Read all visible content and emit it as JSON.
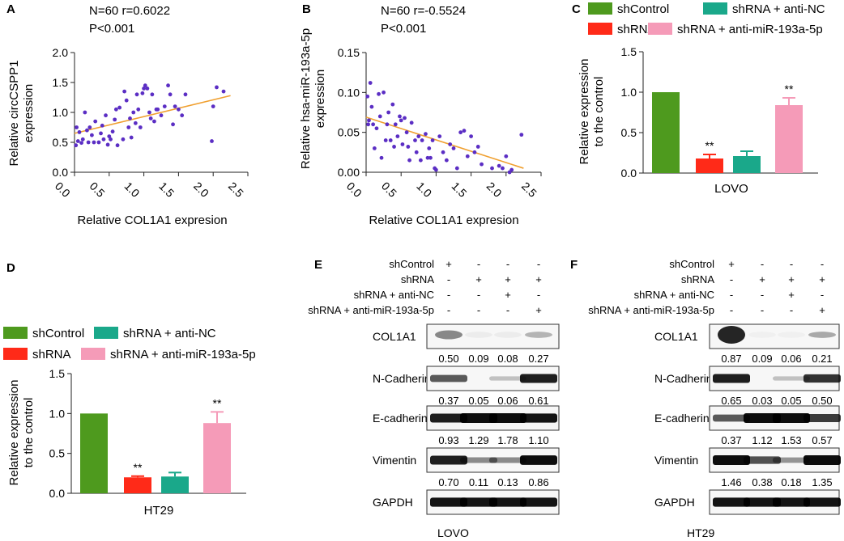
{
  "colors": {
    "shControl": "#4e9a1e",
    "shRNA": "#ff2a18",
    "antiNC": "#1aa88a",
    "antiMiR": "#f59bb8",
    "scatter_point": "#5b2ec4",
    "fit_line": "#f0a030"
  },
  "legend": {
    "shControl": "shControl",
    "antiNC": "shRNA + anti-NC",
    "shRNA": "shRNA",
    "antiMiR": "shRNA + anti-miR-193a-5p"
  },
  "chart_data": [
    {
      "id": "A",
      "type": "scatter",
      "letter": "A",
      "annotation_line1": "N=60   r=0.6022",
      "annotation_line2": "P<0.001",
      "xlabel": "Relative COL1A1 expresion",
      "ylabel_line1": "Relative circCSPP1",
      "ylabel_line2": "expression",
      "xlim": [
        0.0,
        2.5
      ],
      "ylim": [
        0.0,
        2.0
      ],
      "xticks": [
        "0.0",
        "0.5",
        "1.0",
        "1.5",
        "2.0",
        "2.5"
      ],
      "yticks": [
        "0.0",
        "0.5",
        "1.0",
        "1.5",
        "2.0"
      ],
      "fit": [
        [
          0.0,
          0.65
        ],
        [
          2.25,
          1.28
        ]
      ],
      "points": [
        [
          0.02,
          0.45
        ],
        [
          0.03,
          0.75
        ],
        [
          0.05,
          0.52
        ],
        [
          0.07,
          0.67
        ],
        [
          0.1,
          0.49
        ],
        [
          0.12,
          0.55
        ],
        [
          0.15,
          1.0
        ],
        [
          0.18,
          0.7
        ],
        [
          0.2,
          0.5
        ],
        [
          0.22,
          0.75
        ],
        [
          0.25,
          0.62
        ],
        [
          0.28,
          0.5
        ],
        [
          0.3,
          0.85
        ],
        [
          0.35,
          0.5
        ],
        [
          0.38,
          0.65
        ],
        [
          0.4,
          0.78
        ],
        [
          0.42,
          0.55
        ],
        [
          0.45,
          0.95
        ],
        [
          0.48,
          0.46
        ],
        [
          0.5,
          0.6
        ],
        [
          0.52,
          0.55
        ],
        [
          0.55,
          0.68
        ],
        [
          0.58,
          0.88
        ],
        [
          0.6,
          1.05
        ],
        [
          0.62,
          0.45
        ],
        [
          0.65,
          1.08
        ],
        [
          0.7,
          0.55
        ],
        [
          0.72,
          1.35
        ],
        [
          0.75,
          1.2
        ],
        [
          0.78,
          0.75
        ],
        [
          0.8,
          0.9
        ],
        [
          0.82,
          0.58
        ],
        [
          0.85,
          1.0
        ],
        [
          0.88,
          0.82
        ],
        [
          0.9,
          1.3
        ],
        [
          0.92,
          1.05
        ],
        [
          0.95,
          0.75
        ],
        [
          0.98,
          1.32
        ],
        [
          1.0,
          1.4
        ],
        [
          1.02,
          1.45
        ],
        [
          1.05,
          1.4
        ],
        [
          1.08,
          1.0
        ],
        [
          1.1,
          0.9
        ],
        [
          1.12,
          1.3
        ],
        [
          1.15,
          0.85
        ],
        [
          1.18,
          1.05
        ],
        [
          1.2,
          1.05
        ],
        [
          1.25,
          0.95
        ],
        [
          1.3,
          1.1
        ],
        [
          1.35,
          1.45
        ],
        [
          1.38,
          1.3
        ],
        [
          1.42,
          0.8
        ],
        [
          1.45,
          1.1
        ],
        [
          1.5,
          1.05
        ],
        [
          1.55,
          0.95
        ],
        [
          1.6,
          1.3
        ],
        [
          1.98,
          0.52
        ],
        [
          2.0,
          1.1
        ],
        [
          2.05,
          1.42
        ],
        [
          2.15,
          1.35
        ]
      ]
    },
    {
      "id": "B",
      "type": "scatter",
      "letter": "B",
      "annotation_line1": "N=60   r=-0.5524",
      "annotation_line2": "P<0.001",
      "xlabel": "Relative COL1A1 expresion",
      "ylabel_line1": "Relative hsa-miR-193a-5p",
      "ylabel_line2": "expression",
      "xlim": [
        0.0,
        2.5
      ],
      "ylim": [
        0.0,
        0.15
      ],
      "xticks": [
        "0.0",
        "0.5",
        "1.0",
        "1.5",
        "2.0",
        "2.5"
      ],
      "yticks": [
        "0.00",
        "0.05",
        "0.10",
        "0.15"
      ],
      "fit": [
        [
          0.0,
          0.069
        ],
        [
          2.25,
          0.005
        ]
      ],
      "points": [
        [
          0.02,
          0.095
        ],
        [
          0.03,
          0.06
        ],
        [
          0.04,
          0.065
        ],
        [
          0.06,
          0.112
        ],
        [
          0.08,
          0.082
        ],
        [
          0.1,
          0.06
        ],
        [
          0.12,
          0.03
        ],
        [
          0.15,
          0.055
        ],
        [
          0.18,
          0.098
        ],
        [
          0.2,
          0.07
        ],
        [
          0.22,
          0.018
        ],
        [
          0.25,
          0.1
        ],
        [
          0.28,
          0.04
        ],
        [
          0.3,
          0.06
        ],
        [
          0.32,
          0.075
        ],
        [
          0.35,
          0.04
        ],
        [
          0.38,
          0.085
        ],
        [
          0.4,
          0.032
        ],
        [
          0.42,
          0.06
        ],
        [
          0.45,
          0.045
        ],
        [
          0.48,
          0.07
        ],
        [
          0.5,
          0.065
        ],
        [
          0.52,
          0.035
        ],
        [
          0.55,
          0.068
        ],
        [
          0.58,
          0.05
        ],
        [
          0.6,
          0.032
        ],
        [
          0.62,
          0.015
        ],
        [
          0.65,
          0.062
        ],
        [
          0.7,
          0.04
        ],
        [
          0.72,
          0.025
        ],
        [
          0.75,
          0.045
        ],
        [
          0.78,
          0.015
        ],
        [
          0.8,
          0.04
        ],
        [
          0.85,
          0.048
        ],
        [
          0.88,
          0.018
        ],
        [
          0.9,
          0.03
        ],
        [
          0.92,
          0.018
        ],
        [
          0.95,
          0.04
        ],
        [
          0.98,
          0.005
        ],
        [
          1.0,
          0.003
        ],
        [
          1.05,
          0.045
        ],
        [
          1.1,
          0.025
        ],
        [
          1.15,
          0.015
        ],
        [
          1.2,
          0.035
        ],
        [
          1.25,
          0.03
        ],
        [
          1.3,
          0.005
        ],
        [
          1.35,
          0.05
        ],
        [
          1.4,
          0.052
        ],
        [
          1.45,
          0.02
        ],
        [
          1.5,
          0.045
        ],
        [
          1.55,
          0.025
        ],
        [
          1.6,
          0.032
        ],
        [
          1.65,
          0.01
        ],
        [
          1.8,
          0.005
        ],
        [
          1.9,
          0.008
        ],
        [
          1.95,
          0.005
        ],
        [
          2.0,
          0.02
        ],
        [
          2.05,
          0.0
        ],
        [
          2.08,
          0.003
        ],
        [
          2.22,
          0.047
        ]
      ]
    },
    {
      "id": "C",
      "type": "bar",
      "letter": "C",
      "ylabel_line1": "Relative expression",
      "ylabel_line2": "to the control",
      "xlabel": "LOVO",
      "ylim": [
        0.0,
        1.5
      ],
      "yticks": [
        "0.0",
        "0.5",
        "1.0",
        "1.5"
      ],
      "values": [
        1.0,
        0.18,
        0.21,
        0.84
      ],
      "errors": [
        0.0,
        0.05,
        0.06,
        0.09
      ],
      "significance": [
        "",
        "**",
        "",
        "**"
      ]
    },
    {
      "id": "D",
      "type": "bar",
      "letter": "D",
      "ylabel_line1": "Relative expression",
      "ylabel_line2": "to the control",
      "xlabel": "HT29",
      "ylim": [
        0.0,
        1.5
      ],
      "yticks": [
        "0.0",
        "0.5",
        "1.0",
        "1.5"
      ],
      "values": [
        1.0,
        0.2,
        0.21,
        0.88
      ],
      "errors": [
        0.0,
        0.015,
        0.05,
        0.14
      ],
      "significance": [
        "",
        "**",
        "",
        "**"
      ]
    }
  ],
  "blots": [
    {
      "id": "E",
      "letter": "E",
      "cell_line": "LOVO",
      "conditions": [
        {
          "label": "shControl",
          "signs": [
            "+",
            "-",
            "-",
            "-"
          ]
        },
        {
          "label": "shRNA",
          "signs": [
            "-",
            "+",
            "+",
            "+"
          ]
        },
        {
          "label": "shRNA + anti-NC",
          "signs": [
            "-",
            "-",
            "+",
            "-"
          ]
        },
        {
          "label": "shRNA + anti-miR-193a-5p",
          "signs": [
            "-",
            "-",
            "-",
            "+"
          ]
        }
      ],
      "proteins": [
        {
          "name": "COL1A1",
          "values": [
            "0.50",
            "0.09",
            "0.08",
            "0.27"
          ],
          "intensity": [
            0.5,
            0.05,
            0.05,
            0.3
          ],
          "smear": true
        },
        {
          "name": "N-Cadherin",
          "values": [
            "0.37",
            "0.05",
            "0.06",
            "0.61"
          ],
          "intensity": [
            0.55,
            0.0,
            0.02,
            0.85
          ],
          "smear": false
        },
        {
          "name": "E-cadherin",
          "values": [
            "0.93",
            "1.29",
            "1.78",
            "1.10"
          ],
          "intensity": [
            0.85,
            1.0,
            1.0,
            0.9
          ],
          "smear": false
        },
        {
          "name": "Vimentin",
          "values": [
            "0.70",
            "0.11",
            "0.13",
            "0.86"
          ],
          "intensity": [
            0.85,
            0.3,
            0.3,
            0.95
          ],
          "smear": false
        },
        {
          "name": "GAPDH",
          "values": [],
          "intensity": [
            0.9,
            0.9,
            0.9,
            0.9
          ],
          "smear": false
        }
      ]
    },
    {
      "id": "F",
      "letter": "F",
      "cell_line": "HT29",
      "conditions": [
        {
          "label": "shControl",
          "signs": [
            "+",
            "-",
            "-",
            "-"
          ]
        },
        {
          "label": "shRNA",
          "signs": [
            "-",
            "+",
            "+",
            "+"
          ]
        },
        {
          "label": "shRNA + anti-NC",
          "signs": [
            "-",
            "-",
            "+",
            "-"
          ]
        },
        {
          "label": "shRNA + anti-miR-193a-5p",
          "signs": [
            "-",
            "-",
            "-",
            "+"
          ]
        }
      ],
      "proteins": [
        {
          "name": "COL1A1",
          "values": [
            "0.87",
            "0.09",
            "0.06",
            "0.21"
          ],
          "intensity": [
            1.0,
            0.03,
            0.03,
            0.35
          ],
          "smear": true
        },
        {
          "name": "N-Cadherin",
          "values": [
            "0.65",
            "0.03",
            "0.05",
            "0.50"
          ],
          "intensity": [
            0.85,
            0.0,
            0.02,
            0.75
          ],
          "smear": false
        },
        {
          "name": "E-cadherin",
          "values": [
            "0.37",
            "1.12",
            "1.53",
            "0.57"
          ],
          "intensity": [
            0.55,
            1.0,
            1.0,
            0.7
          ],
          "smear": false
        },
        {
          "name": "Vimentin",
          "values": [
            "1.46",
            "0.38",
            "0.18",
            "1.35"
          ],
          "intensity": [
            1.0,
            0.6,
            0.25,
            1.0
          ],
          "smear": false
        },
        {
          "name": "GAPDH",
          "values": [],
          "intensity": [
            0.9,
            0.9,
            0.9,
            0.9
          ],
          "smear": false
        }
      ]
    }
  ]
}
